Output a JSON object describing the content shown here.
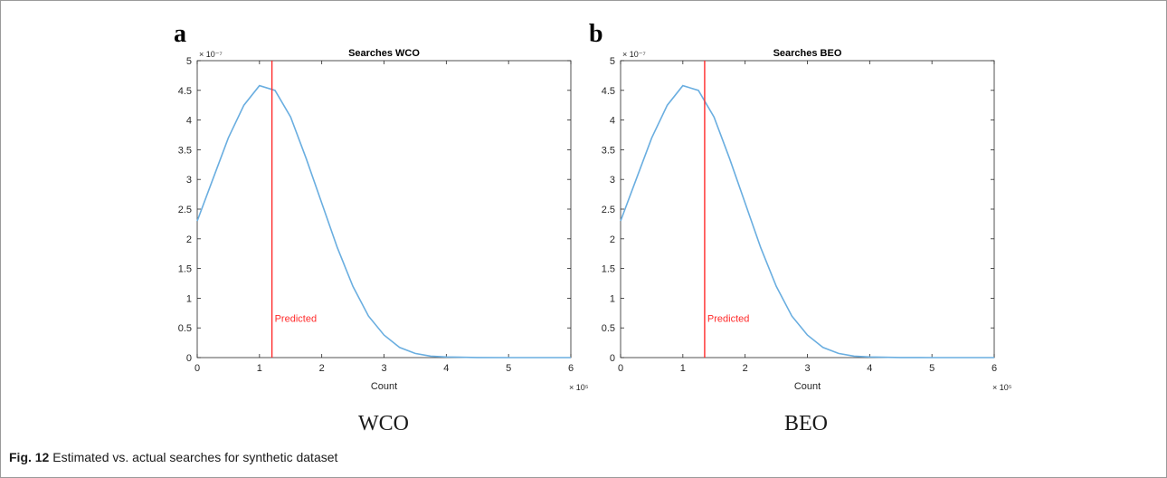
{
  "caption": {
    "label": "Fig. 12",
    "text": "Estimated vs. actual searches for synthetic dataset"
  },
  "colors": {
    "curve": "#6aaee0",
    "predicted": "#ff2a2a",
    "axis": "#262626"
  },
  "chart_data": [
    {
      "type": "line",
      "panel_letter": "a",
      "title": "Searches WCO",
      "xlabel": "Count",
      "ylabel": "",
      "x_multiplier": "× 10⁵",
      "y_multiplier": "× 10⁻⁷",
      "xlim": [
        0,
        6
      ],
      "ylim": [
        0,
        5
      ],
      "xticks": [
        "0",
        "1",
        "2",
        "3",
        "4",
        "5",
        "6"
      ],
      "yticks": [
        "0",
        "0.5",
        "1",
        "1.5",
        "2",
        "2.5",
        "3",
        "3.5",
        "4",
        "4.5",
        "5"
      ],
      "grid": false,
      "series": [
        {
          "x": [
            0,
            0.25,
            0.5,
            0.75,
            1.0,
            1.25,
            1.5,
            1.75,
            2.0,
            2.25,
            2.5,
            2.75,
            3.0,
            3.25,
            3.5,
            3.75,
            4.0,
            4.5,
            5.0,
            5.5,
            6.0
          ],
          "y": [
            2.3,
            3.0,
            3.7,
            4.25,
            4.58,
            4.5,
            4.05,
            3.35,
            2.6,
            1.85,
            1.2,
            0.7,
            0.38,
            0.17,
            0.07,
            0.025,
            0.01,
            0.002,
            0.0,
            0.0,
            0.0
          ]
        }
      ],
      "vline": {
        "x": 1.2,
        "label": "Predicted"
      },
      "sub_caption": "WCO"
    },
    {
      "type": "line",
      "panel_letter": "b",
      "title": "Searches BEO",
      "xlabel": "Count",
      "ylabel": "",
      "x_multiplier": "× 10⁵",
      "y_multiplier": "× 10⁻⁷",
      "xlim": [
        0,
        6
      ],
      "ylim": [
        0,
        5
      ],
      "xticks": [
        "0",
        "1",
        "2",
        "3",
        "4",
        "5",
        "6"
      ],
      "yticks": [
        "0",
        "0.5",
        "1",
        "1.5",
        "2",
        "2.5",
        "3",
        "3.5",
        "4",
        "4.5",
        "5"
      ],
      "grid": false,
      "series": [
        {
          "x": [
            0,
            0.25,
            0.5,
            0.75,
            1.0,
            1.25,
            1.5,
            1.75,
            2.0,
            2.25,
            2.5,
            2.75,
            3.0,
            3.25,
            3.5,
            3.75,
            4.0,
            4.5,
            5.0,
            5.5,
            6.0
          ],
          "y": [
            2.3,
            3.0,
            3.7,
            4.25,
            4.58,
            4.5,
            4.05,
            3.35,
            2.6,
            1.85,
            1.2,
            0.7,
            0.38,
            0.17,
            0.07,
            0.025,
            0.01,
            0.002,
            0.0,
            0.0,
            0.0
          ]
        }
      ],
      "vline": {
        "x": 1.35,
        "label": "Predicted"
      },
      "sub_caption": "BEO"
    }
  ]
}
